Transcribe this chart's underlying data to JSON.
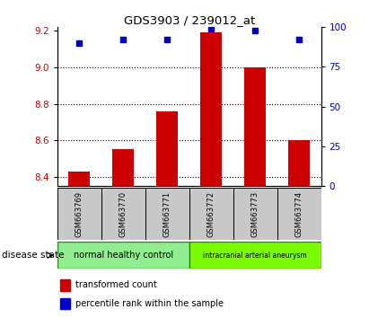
{
  "title": "GDS3903 / 239012_at",
  "samples": [
    "GSM663769",
    "GSM663770",
    "GSM663771",
    "GSM663772",
    "GSM663773",
    "GSM663774"
  ],
  "red_values": [
    8.43,
    8.55,
    8.76,
    9.19,
    9.0,
    8.6
  ],
  "blue_values": [
    90,
    92,
    92,
    99,
    98,
    92
  ],
  "ylim_left": [
    8.35,
    9.22
  ],
  "ylim_right": [
    0,
    100
  ],
  "yticks_left": [
    8.4,
    8.6,
    8.8,
    9.0,
    9.2
  ],
  "yticks_right": [
    0,
    25,
    50,
    75,
    100
  ],
  "group1_label": "normal healthy control",
  "group1_color": "#90EE90",
  "group2_label": "intracranial arterial aneurysm",
  "group2_color": "#7CFC00",
  "bar_color": "#CC0000",
  "dot_color": "#0000CC",
  "tick_label_color_left": "#CC0000",
  "tick_label_color_right": "#0000CC",
  "sample_area_color": "#C8C8C8",
  "legend_red": "transformed count",
  "legend_blue": "percentile rank within the sample",
  "disease_state_label": "disease state",
  "bar_bottom": 8.35,
  "bar_width": 0.5
}
